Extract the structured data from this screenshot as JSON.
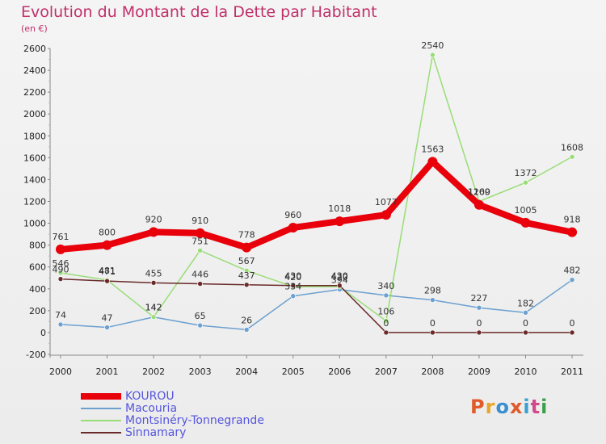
{
  "title": "Evolution du Montant de la Dette par Habitant",
  "subtitle": "(en €)",
  "logo": {
    "text": "Proxiti",
    "colors": [
      "#e05a2a",
      "#e8a52a",
      "#3a8fd0",
      "#e05a2a",
      "#3aa0d0",
      "#d04a8a",
      "#3aa04a"
    ]
  },
  "chart_data": {
    "type": "line",
    "x": [
      "2000",
      "2001",
      "2002",
      "2003",
      "2004",
      "2005",
      "2006",
      "2007",
      "2008",
      "2009",
      "2010",
      "2011"
    ],
    "ylim": [
      -200,
      2600
    ],
    "yticks": [
      "-200",
      "0",
      "200",
      "400",
      "600",
      "800",
      "1000",
      "1200",
      "1400",
      "1600",
      "1800",
      "2000",
      "2200",
      "2400",
      "2600"
    ],
    "grid": false,
    "legend": "bottom-left",
    "series": [
      {
        "name": "KOUROU",
        "color": "#e8000b",
        "width": 8,
        "values": [
          761,
          800,
          920,
          910,
          778,
          960,
          1018,
          1077,
          1563,
          1169,
          1005,
          918
        ]
      },
      {
        "name": "Macouria",
        "color": "#6ca0d0",
        "width": 1.5,
        "values": [
          74,
          47,
          142,
          65,
          26,
          334,
          394,
          340,
          298,
          227,
          182,
          482
        ]
      },
      {
        "name": "Montsinéry-Tonnegrande",
        "color": "#99dd77",
        "width": 1.5,
        "values": [
          546,
          481,
          142,
          751,
          567,
          420,
          420,
          106,
          2540,
          1200,
          1372,
          1608
        ]
      },
      {
        "name": "Sinnamary",
        "color": "#6b2a2a",
        "width": 1.5,
        "values": [
          490,
          471,
          455,
          446,
          437,
          430,
          430,
          0,
          0,
          0,
          0,
          0
        ]
      }
    ],
    "labels": [
      [
        "761",
        "800",
        "920",
        "910",
        "778",
        "960",
        "1018",
        "1077",
        "1563",
        "1169",
        "1005",
        "918"
      ],
      [
        "74",
        "47",
        "142",
        "65",
        "26",
        "334",
        "394",
        "340",
        "298",
        "227",
        "182",
        "482"
      ],
      [
        "546",
        "481",
        "142",
        "751",
        "567",
        "420",
        "420",
        "106",
        "2540",
        "1200",
        "1372",
        "1608"
      ],
      [
        "490",
        "471",
        "455",
        "446",
        "437",
        "430",
        "430",
        "0",
        "0",
        "0",
        "0",
        "0"
      ]
    ]
  }
}
